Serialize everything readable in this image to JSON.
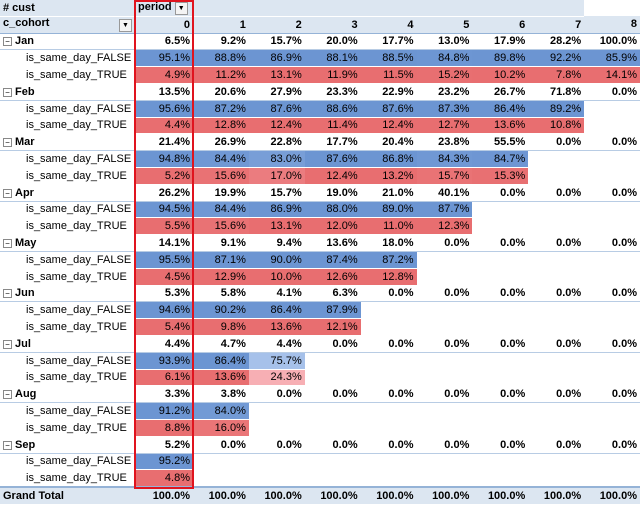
{
  "header": {
    "corner": "# cust",
    "column_field": "period",
    "row_field": "c_cohort",
    "columns": [
      "0",
      "1",
      "2",
      "3",
      "4",
      "5",
      "6",
      "7",
      "8"
    ]
  },
  "groups": [
    {
      "label": "Jan",
      "values": [
        "6.5%",
        "9.2%",
        "15.7%",
        "20.0%",
        "17.7%",
        "13.0%",
        "17.9%",
        "28.2%",
        "100.0%"
      ],
      "rows": [
        {
          "label": "is_same_day_FALSE",
          "values": [
            "95.1%",
            "88.8%",
            "86.9%",
            "88.1%",
            "88.5%",
            "84.8%",
            "89.8%",
            "92.2%",
            "85.9%"
          ]
        },
        {
          "label": "is_same_day_TRUE",
          "values": [
            "4.9%",
            "11.2%",
            "13.1%",
            "11.9%",
            "11.5%",
            "15.2%",
            "10.2%",
            "7.8%",
            "14.1%"
          ]
        }
      ]
    },
    {
      "label": "Feb",
      "values": [
        "13.5%",
        "20.6%",
        "27.9%",
        "23.3%",
        "22.9%",
        "23.2%",
        "26.7%",
        "71.8%",
        "0.0%"
      ],
      "rows": [
        {
          "label": "is_same_day_FALSE",
          "values": [
            "95.6%",
            "87.2%",
            "87.6%",
            "88.6%",
            "87.6%",
            "87.3%",
            "86.4%",
            "89.2%"
          ]
        },
        {
          "label": "is_same_day_TRUE",
          "values": [
            "4.4%",
            "12.8%",
            "12.4%",
            "11.4%",
            "12.4%",
            "12.7%",
            "13.6%",
            "10.8%"
          ]
        }
      ]
    },
    {
      "label": "Mar",
      "values": [
        "21.4%",
        "26.9%",
        "22.8%",
        "17.7%",
        "20.4%",
        "23.8%",
        "55.5%",
        "0.0%",
        "0.0%"
      ],
      "rows": [
        {
          "label": "is_same_day_FALSE",
          "values": [
            "94.8%",
            "84.4%",
            "83.0%",
            "87.6%",
            "86.8%",
            "84.3%",
            "84.7%"
          ]
        },
        {
          "label": "is_same_day_TRUE",
          "values": [
            "5.2%",
            "15.6%",
            "17.0%",
            "12.4%",
            "13.2%",
            "15.7%",
            "15.3%"
          ]
        }
      ]
    },
    {
      "label": "Apr",
      "values": [
        "26.2%",
        "19.9%",
        "15.7%",
        "19.0%",
        "21.0%",
        "40.1%",
        "0.0%",
        "0.0%",
        "0.0%"
      ],
      "rows": [
        {
          "label": "is_same_day_FALSE",
          "values": [
            "94.5%",
            "84.4%",
            "86.9%",
            "88.0%",
            "89.0%",
            "87.7%"
          ]
        },
        {
          "label": "is_same_day_TRUE",
          "values": [
            "5.5%",
            "15.6%",
            "13.1%",
            "12.0%",
            "11.0%",
            "12.3%"
          ]
        }
      ]
    },
    {
      "label": "May",
      "values": [
        "14.1%",
        "9.1%",
        "9.4%",
        "13.6%",
        "18.0%",
        "0.0%",
        "0.0%",
        "0.0%",
        "0.0%"
      ],
      "rows": [
        {
          "label": "is_same_day_FALSE",
          "values": [
            "95.5%",
            "87.1%",
            "90.0%",
            "87.4%",
            "87.2%"
          ]
        },
        {
          "label": "is_same_day_TRUE",
          "values": [
            "4.5%",
            "12.9%",
            "10.0%",
            "12.6%",
            "12.8%"
          ]
        }
      ]
    },
    {
      "label": "Jun",
      "values": [
        "5.3%",
        "5.8%",
        "4.1%",
        "6.3%",
        "0.0%",
        "0.0%",
        "0.0%",
        "0.0%",
        "0.0%"
      ],
      "rows": [
        {
          "label": "is_same_day_FALSE",
          "values": [
            "94.6%",
            "90.2%",
            "86.4%",
            "87.9%"
          ]
        },
        {
          "label": "is_same_day_TRUE",
          "values": [
            "5.4%",
            "9.8%",
            "13.6%",
            "12.1%"
          ]
        }
      ]
    },
    {
      "label": "Jul",
      "values": [
        "4.4%",
        "4.7%",
        "4.4%",
        "0.0%",
        "0.0%",
        "0.0%",
        "0.0%",
        "0.0%",
        "0.0%"
      ],
      "rows": [
        {
          "label": "is_same_day_FALSE",
          "values": [
            "93.9%",
            "86.4%",
            "75.7%"
          ]
        },
        {
          "label": "is_same_day_TRUE",
          "values": [
            "6.1%",
            "13.6%",
            "24.3%"
          ]
        }
      ]
    },
    {
      "label": "Aug",
      "values": [
        "3.3%",
        "3.8%",
        "0.0%",
        "0.0%",
        "0.0%",
        "0.0%",
        "0.0%",
        "0.0%",
        "0.0%"
      ],
      "rows": [
        {
          "label": "is_same_day_FALSE",
          "values": [
            "91.2%",
            "84.0%"
          ]
        },
        {
          "label": "is_same_day_TRUE",
          "values": [
            "8.8%",
            "16.0%"
          ]
        }
      ]
    },
    {
      "label": "Sep",
      "values": [
        "5.2%",
        "0.0%",
        "0.0%",
        "0.0%",
        "0.0%",
        "0.0%",
        "0.0%",
        "0.0%",
        "0.0%"
      ],
      "rows": [
        {
          "label": "is_same_day_FALSE",
          "values": [
            "95.2%"
          ]
        },
        {
          "label": "is_same_day_TRUE",
          "values": [
            "4.8%"
          ]
        }
      ]
    }
  ],
  "grand_total": {
    "label": "Grand Total",
    "values": [
      "100.0%",
      "100.0%",
      "100.0%",
      "100.0%",
      "100.0%",
      "100.0%",
      "100.0%",
      "100.0%",
      "100.0%"
    ]
  }
}
